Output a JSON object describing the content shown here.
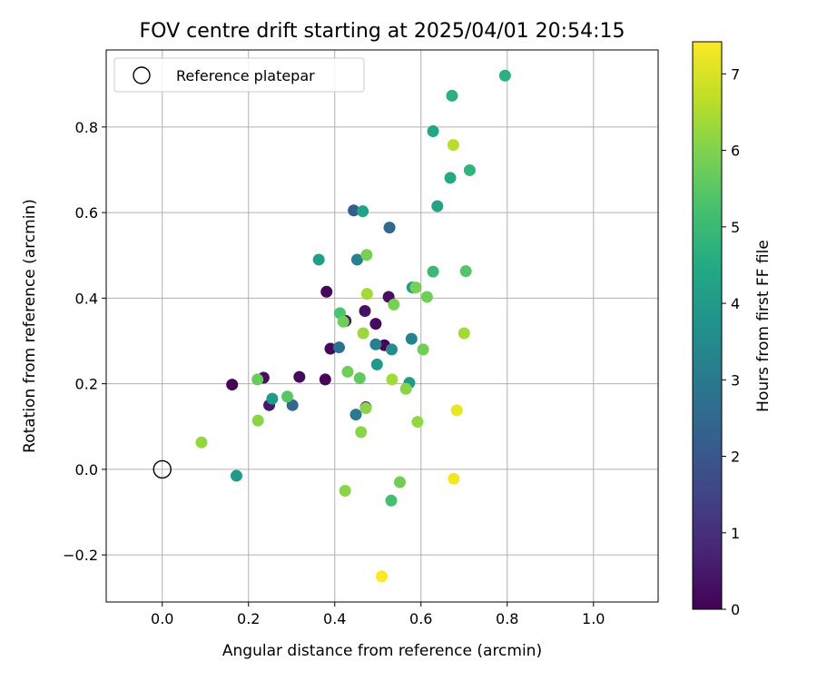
{
  "chart_data": {
    "type": "scatter",
    "title": "FOV centre drift starting at 2025/04/01 20:54:15",
    "xlabel": "Angular distance from reference (arcmin)",
    "ylabel": "Rotation from reference (arcmin)",
    "xlim": [
      -0.13,
      1.15
    ],
    "ylim": [
      -0.31,
      0.98
    ],
    "xticks": [
      0.0,
      0.2,
      0.4,
      0.6,
      0.8,
      1.0
    ],
    "xtick_labels": [
      "0.0",
      "0.2",
      "0.4",
      "0.6",
      "0.8",
      "1.0"
    ],
    "yticks": [
      -0.2,
      0.0,
      0.2,
      0.4,
      0.6,
      0.8
    ],
    "ytick_labels": [
      "−0.2",
      "0.0",
      "0.2",
      "0.4",
      "0.6",
      "0.8"
    ],
    "grid": true,
    "legend": {
      "position": "top-left",
      "entries": [
        "Reference platepar"
      ]
    },
    "reference_point": {
      "x": 0.0,
      "y": 0.0
    },
    "colorbar": {
      "label": "Hours from first FF file",
      "colormap": "viridis",
      "range": [
        0,
        7.42
      ],
      "ticks": [
        0,
        1,
        2,
        3,
        4,
        5,
        6,
        7
      ],
      "tick_labels": [
        "0",
        "1",
        "2",
        "3",
        "4",
        "5",
        "6",
        "7"
      ]
    },
    "points": [
      {
        "x": 0.162,
        "y": 0.198,
        "h": 0.1
      },
      {
        "x": 0.235,
        "y": 0.214,
        "h": 0.3
      },
      {
        "x": 0.248,
        "y": 0.15,
        "h": 0.5
      },
      {
        "x": 0.318,
        "y": 0.216,
        "h": 0.2
      },
      {
        "x": 0.378,
        "y": 0.21,
        "h": 0.1
      },
      {
        "x": 0.381,
        "y": 0.415,
        "h": 0.1
      },
      {
        "x": 0.39,
        "y": 0.282,
        "h": 0.2
      },
      {
        "x": 0.425,
        "y": 0.347,
        "h": 0.3
      },
      {
        "x": 0.47,
        "y": 0.37,
        "h": 0.4
      },
      {
        "x": 0.472,
        "y": 0.145,
        "h": 0.4
      },
      {
        "x": 0.495,
        "y": 0.34,
        "h": 0.2
      },
      {
        "x": 0.515,
        "y": 0.29,
        "h": 0.1
      },
      {
        "x": 0.525,
        "y": 0.403,
        "h": 0.3
      },
      {
        "x": 0.444,
        "y": 0.605,
        "h": 2.2
      },
      {
        "x": 0.527,
        "y": 0.565,
        "h": 2.5
      },
      {
        "x": 0.302,
        "y": 0.15,
        "h": 2.5
      },
      {
        "x": 0.41,
        "y": 0.285,
        "h": 2.8
      },
      {
        "x": 0.449,
        "y": 0.128,
        "h": 3.0
      },
      {
        "x": 0.452,
        "y": 0.49,
        "h": 3.2
      },
      {
        "x": 0.495,
        "y": 0.292,
        "h": 3.2
      },
      {
        "x": 0.578,
        "y": 0.305,
        "h": 3.3
      },
      {
        "x": 0.532,
        "y": 0.28,
        "h": 3.6
      },
      {
        "x": 0.498,
        "y": 0.245,
        "h": 4.0
      },
      {
        "x": 0.573,
        "y": 0.202,
        "h": 4.0
      },
      {
        "x": 0.58,
        "y": 0.425,
        "h": 4.2
      },
      {
        "x": 0.172,
        "y": -0.015,
        "h": 4.0
      },
      {
        "x": 0.255,
        "y": 0.165,
        "h": 4.0
      },
      {
        "x": 0.363,
        "y": 0.49,
        "h": 4.2
      },
      {
        "x": 0.465,
        "y": 0.603,
        "h": 4.3
      },
      {
        "x": 0.638,
        "y": 0.615,
        "h": 4.3
      },
      {
        "x": 0.628,
        "y": 0.79,
        "h": 4.4
      },
      {
        "x": 0.668,
        "y": 0.681,
        "h": 4.5
      },
      {
        "x": 0.672,
        "y": 0.873,
        "h": 4.7
      },
      {
        "x": 0.795,
        "y": 0.92,
        "h": 4.7
      },
      {
        "x": 0.713,
        "y": 0.699,
        "h": 4.8
      },
      {
        "x": 0.628,
        "y": 0.462,
        "h": 5.0
      },
      {
        "x": 0.704,
        "y": 0.463,
        "h": 5.4
      },
      {
        "x": 0.531,
        "y": -0.073,
        "h": 5.2
      },
      {
        "x": 0.29,
        "y": 0.17,
        "h": 5.5
      },
      {
        "x": 0.412,
        "y": 0.365,
        "h": 5.3
      },
      {
        "x": 0.42,
        "y": 0.345,
        "h": 5.8
      },
      {
        "x": 0.43,
        "y": 0.228,
        "h": 5.8
      },
      {
        "x": 0.458,
        "y": 0.213,
        "h": 5.6
      },
      {
        "x": 0.474,
        "y": 0.501,
        "h": 5.9
      },
      {
        "x": 0.537,
        "y": 0.385,
        "h": 5.9
      },
      {
        "x": 0.588,
        "y": 0.425,
        "h": 5.9
      },
      {
        "x": 0.605,
        "y": 0.28,
        "h": 5.8
      },
      {
        "x": 0.614,
        "y": 0.403,
        "h": 5.8
      },
      {
        "x": 0.551,
        "y": -0.03,
        "h": 5.8
      },
      {
        "x": 0.221,
        "y": 0.21,
        "h": 5.7
      },
      {
        "x": 0.222,
        "y": 0.114,
        "h": 6.1
      },
      {
        "x": 0.091,
        "y": 0.063,
        "h": 6.2
      },
      {
        "x": 0.424,
        "y": -0.05,
        "h": 6.1
      },
      {
        "x": 0.461,
        "y": 0.087,
        "h": 6.1
      },
      {
        "x": 0.472,
        "y": 0.143,
        "h": 6.1
      },
      {
        "x": 0.565,
        "y": 0.188,
        "h": 6.1
      },
      {
        "x": 0.592,
        "y": 0.111,
        "h": 6.2
      },
      {
        "x": 0.466,
        "y": 0.318,
        "h": 6.3
      },
      {
        "x": 0.475,
        "y": 0.41,
        "h": 6.4
      },
      {
        "x": 0.533,
        "y": 0.21,
        "h": 6.4
      },
      {
        "x": 0.7,
        "y": 0.318,
        "h": 6.4
      },
      {
        "x": 0.675,
        "y": 0.758,
        "h": 6.6
      },
      {
        "x": 0.683,
        "y": 0.138,
        "h": 7.2
      },
      {
        "x": 0.676,
        "y": -0.022,
        "h": 7.3
      },
      {
        "x": 0.509,
        "y": -0.25,
        "h": 7.4
      }
    ]
  }
}
